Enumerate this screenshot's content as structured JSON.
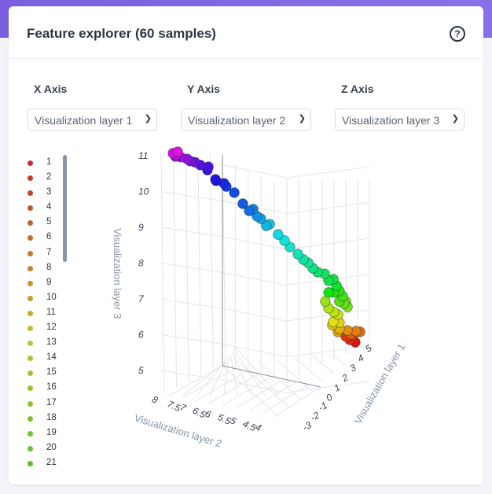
{
  "header": {
    "title": "Feature explorer (60 samples)",
    "help_icon": "question-circle-icon"
  },
  "controls": [
    {
      "label": "X Axis",
      "value": "Visualization layer 1"
    },
    {
      "label": "Y Axis",
      "value": "Visualization layer 2"
    },
    {
      "label": "Z Axis",
      "value": "Visualization layer 3"
    }
  ],
  "legend": [
    "1",
    "2",
    "3",
    "4",
    "5",
    "6",
    "7",
    "8",
    "9",
    "10",
    "11",
    "12",
    "13",
    "14",
    "15",
    "16",
    "17",
    "18",
    "19",
    "20",
    "21"
  ],
  "chart_data": {
    "type": "scatter3d",
    "xlabel": "Visualization layer 1",
    "ylabel": "Visualization layer 2",
    "zlabel": "Visualization layer 3",
    "x_ticks": [
      "-3",
      "-2",
      "-1",
      "0",
      "1",
      "2",
      "3",
      "4",
      "5"
    ],
    "y_ticks": [
      "8",
      "7.5",
      "7",
      "6.5",
      "6",
      "5.5",
      "5",
      "4.5",
      "4"
    ],
    "z_ticks": [
      "5",
      "6",
      "7",
      "8",
      "9",
      "10",
      "11"
    ],
    "x": [
      4.9,
      4.67,
      4.5,
      4.8,
      4.7,
      5.1,
      4.93,
      4.57,
      4.17,
      4.23,
      3.93,
      4.23,
      3.97,
      4.17,
      4.0,
      3.77,
      3.63,
      4.5,
      4.57,
      4.43,
      4.23,
      4.37,
      4.23,
      4.0,
      3.77,
      4.1,
      3.97,
      3.77,
      3.6,
      3.3,
      3.1,
      2.9,
      2.7,
      2.47,
      2.13,
      1.9,
      1.63,
      1.27,
      1.13,
      0.9,
      0.73,
      0.57,
      0.4,
      0.13,
      -0.23,
      -0.57,
      -0.67,
      -1.0,
      -1.03,
      -1.37,
      -1.33,
      -1.67,
      -1.9,
      -2.1,
      -2.23,
      -2.5,
      -2.73,
      -2.7,
      -2.83,
      -2.63
    ],
    "y": [
      4.6,
      4.65,
      4.71,
      4.76,
      4.82,
      4.87,
      4.93,
      4.98,
      5.03,
      5.09,
      5.14,
      5.2,
      5.25,
      5.31,
      5.36,
      5.41,
      5.47,
      5.52,
      5.58,
      5.63,
      5.68,
      5.74,
      5.79,
      5.85,
      5.9,
      5.96,
      6.01,
      6.06,
      6.12,
      6.17,
      6.23,
      6.28,
      6.33,
      6.39,
      6.44,
      6.5,
      6.55,
      6.61,
      6.66,
      6.71,
      6.77,
      6.82,
      6.88,
      6.93,
      6.98,
      7.04,
      7.09,
      7.15,
      7.2,
      7.26,
      7.31,
      7.36,
      7.42,
      7.47,
      7.53,
      7.58,
      7.63,
      7.69,
      7.74,
      7.8
    ],
    "z": [
      5.79,
      5.86,
      5.95,
      5.99,
      6.01,
      6.08,
      6.1,
      6.12,
      6.08,
      6.16,
      6.27,
      6.34,
      6.36,
      6.56,
      6.63,
      6.74,
      6.93,
      6.93,
      6.78,
      6.87,
      6.93,
      7.07,
      7.22,
      7.18,
      7.18,
      7.37,
      7.55,
      7.51,
      7.7,
      7.75,
      7.86,
      8.01,
      8.1,
      8.25,
      8.45,
      8.63,
      8.8,
      9.09,
      9.04,
      9.24,
      9.31,
      9.51,
      9.46,
      9.66,
      9.97,
      10.14,
      10.23,
      10.3,
      10.34,
      10.6,
      10.69,
      10.74,
      10.82,
      10.85,
      10.91,
      10.96,
      10.98,
      11.02,
      11.07,
      11.11
    ],
    "color_scale": "rainbow (1 red → 60 magenta)"
  }
}
